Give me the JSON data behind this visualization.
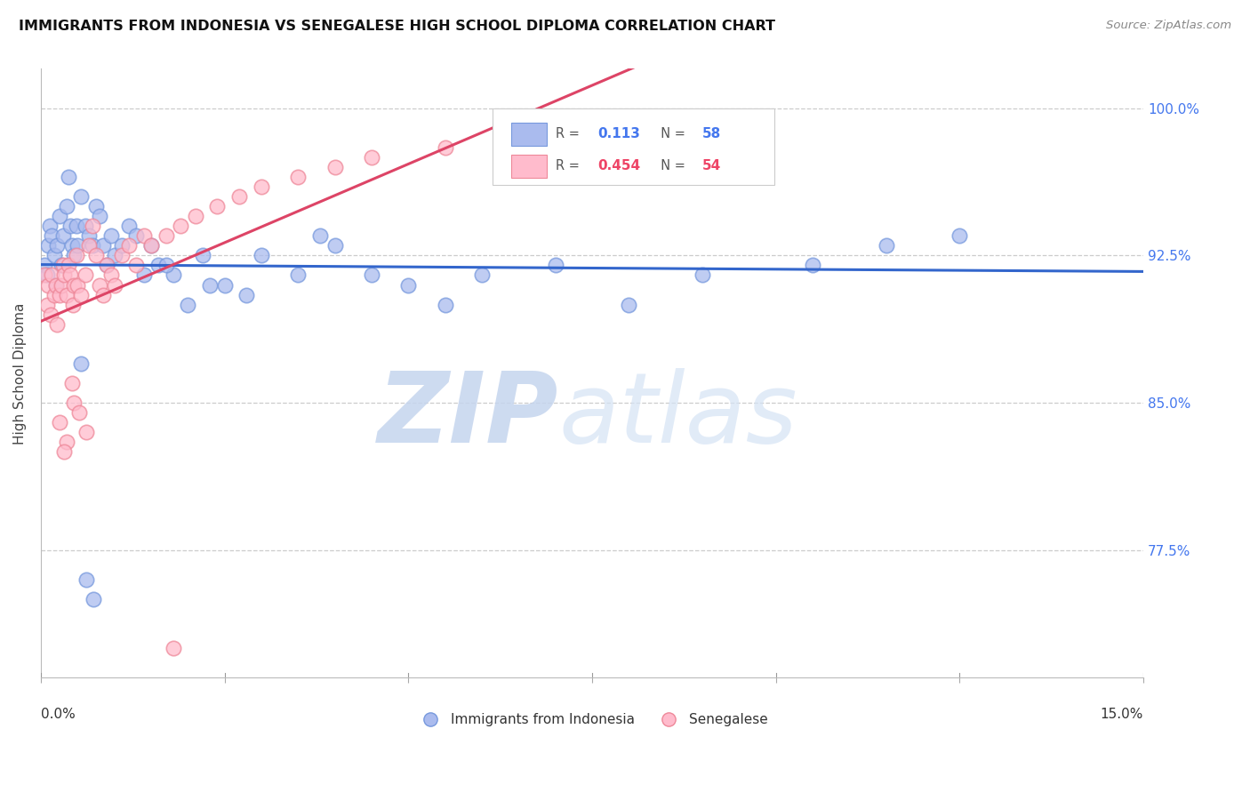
{
  "title": "IMMIGRANTS FROM INDONESIA VS SENEGALESE HIGH SCHOOL DIPLOMA CORRELATION CHART",
  "source": "Source: ZipAtlas.com",
  "ylabel": "High School Diploma",
  "xlim": [
    0.0,
    15.0
  ],
  "ylim": [
    71.0,
    102.0
  ],
  "yticks": [
    77.5,
    85.0,
    92.5,
    100.0
  ],
  "ytick_labels": [
    "77.5%",
    "85.0%",
    "92.5%",
    "100.0%"
  ],
  "blue_color": "#aabbee",
  "blue_edge": "#7799dd",
  "pink_color": "#ffbbcc",
  "pink_edge": "#ee8899",
  "blue_line_color": "#3366cc",
  "pink_line_color": "#dd4466",
  "text_blue": "#4477ee",
  "text_pink": "#ee4466",
  "watermark_zip_color": "#c8d8f0",
  "watermark_atlas_color": "#d0dff5",
  "legend_r1_val": "0.113",
  "legend_n1_val": "58",
  "legend_r2_val": "0.454",
  "legend_n2_val": "54",
  "indo_x": [
    0.05,
    0.08,
    0.1,
    0.12,
    0.15,
    0.18,
    0.2,
    0.22,
    0.25,
    0.28,
    0.3,
    0.35,
    0.38,
    0.4,
    0.42,
    0.45,
    0.48,
    0.5,
    0.55,
    0.6,
    0.65,
    0.7,
    0.75,
    0.8,
    0.85,
    0.9,
    0.95,
    1.0,
    1.1,
    1.2,
    1.3,
    1.4,
    1.5,
    1.6,
    1.8,
    2.0,
    2.2,
    2.5,
    2.8,
    3.0,
    3.5,
    4.0,
    4.5,
    5.0,
    5.5,
    6.0,
    7.0,
    8.0,
    9.0,
    10.5,
    11.5,
    12.5,
    3.8,
    2.3,
    1.7,
    0.55,
    0.62,
    0.72
  ],
  "indo_y": [
    92.0,
    91.5,
    93.0,
    94.0,
    93.5,
    92.5,
    91.0,
    93.0,
    94.5,
    92.0,
    93.5,
    95.0,
    96.5,
    94.0,
    93.0,
    92.5,
    94.0,
    93.0,
    95.5,
    94.0,
    93.5,
    93.0,
    95.0,
    94.5,
    93.0,
    92.0,
    93.5,
    92.5,
    93.0,
    94.0,
    93.5,
    91.5,
    93.0,
    92.0,
    91.5,
    90.0,
    92.5,
    91.0,
    90.5,
    92.5,
    91.5,
    93.0,
    91.5,
    91.0,
    90.0,
    91.5,
    92.0,
    90.0,
    91.5,
    92.0,
    93.0,
    93.5,
    93.5,
    91.0,
    92.0,
    87.0,
    76.0,
    75.0
  ],
  "sen_x": [
    0.05,
    0.08,
    0.1,
    0.13,
    0.15,
    0.18,
    0.2,
    0.22,
    0.25,
    0.28,
    0.3,
    0.32,
    0.35,
    0.38,
    0.4,
    0.43,
    0.45,
    0.48,
    0.5,
    0.55,
    0.6,
    0.65,
    0.7,
    0.75,
    0.8,
    0.85,
    0.9,
    0.95,
    1.0,
    1.1,
    1.2,
    1.3,
    1.4,
    1.5,
    1.7,
    1.9,
    2.1,
    2.4,
    2.7,
    3.0,
    3.5,
    4.0,
    4.5,
    5.5,
    6.5,
    7.5,
    0.25,
    0.35,
    0.45,
    0.32,
    0.42,
    0.52,
    0.62,
    1.8
  ],
  "sen_y": [
    91.5,
    90.0,
    91.0,
    89.5,
    91.5,
    90.5,
    91.0,
    89.0,
    90.5,
    91.0,
    92.0,
    91.5,
    90.5,
    92.0,
    91.5,
    90.0,
    91.0,
    92.5,
    91.0,
    90.5,
    91.5,
    93.0,
    94.0,
    92.5,
    91.0,
    90.5,
    92.0,
    91.5,
    91.0,
    92.5,
    93.0,
    92.0,
    93.5,
    93.0,
    93.5,
    94.0,
    94.5,
    95.0,
    95.5,
    96.0,
    96.5,
    97.0,
    97.5,
    98.0,
    98.5,
    99.5,
    84.0,
    83.0,
    85.0,
    82.5,
    86.0,
    84.5,
    83.5,
    72.5
  ]
}
